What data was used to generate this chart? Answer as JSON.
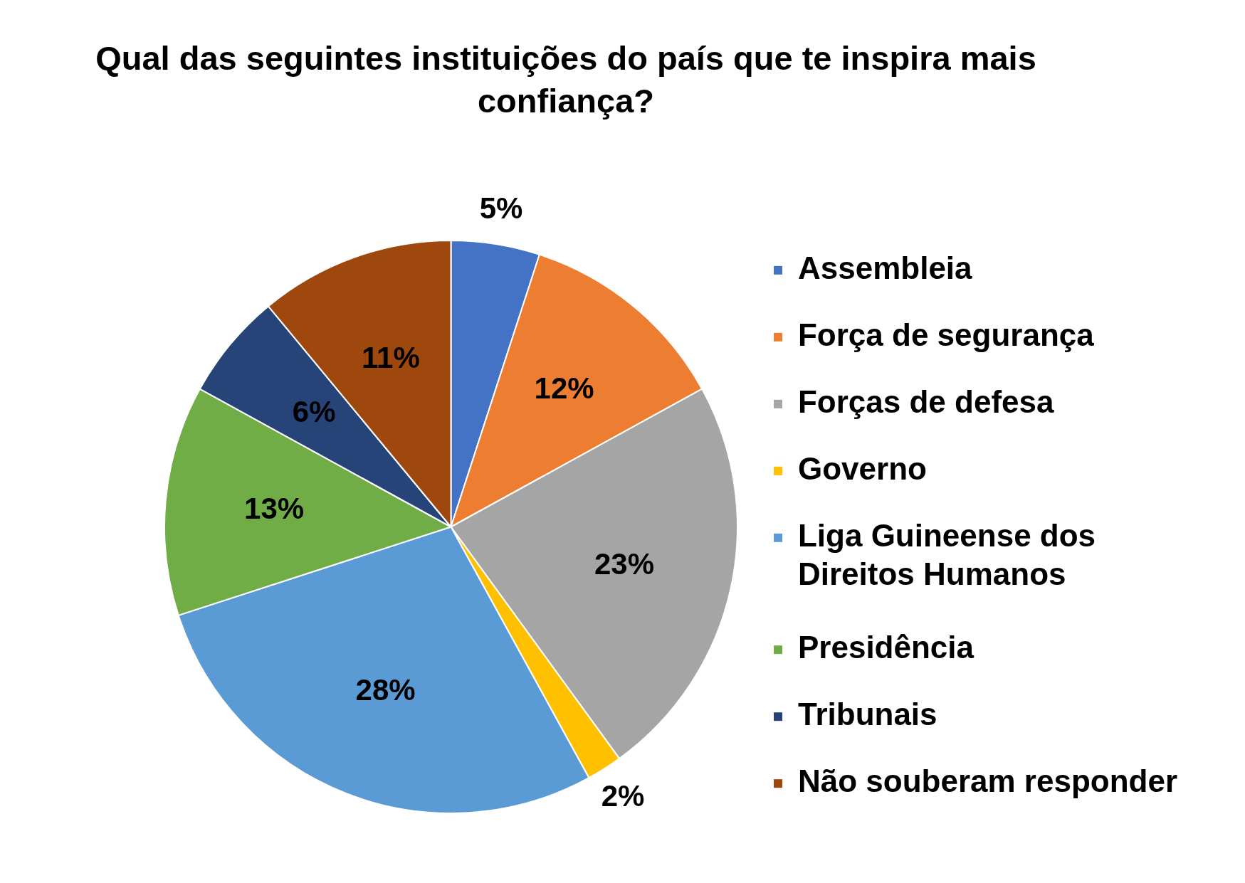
{
  "chart_data": {
    "type": "pie",
    "title": "Qual das seguintes instituições do país que te inspira mais confiança?",
    "categories": [
      "Assembleia",
      "Força de segurança",
      "Forças de defesa",
      "Governo",
      "Liga Guineense dos Direitos Humanos",
      "Presidência",
      "Tribunais",
      "Não souberam responder"
    ],
    "values": [
      5,
      12,
      23,
      2,
      28,
      13,
      6,
      11
    ],
    "colors": [
      "#4472c4",
      "#ed7d31",
      "#a5a5a5",
      "#ffc000",
      "#5b9bd5",
      "#70ad47",
      "#264478",
      "#9e480e"
    ],
    "value_labels": [
      "5%",
      "12%",
      "23%",
      "2%",
      "28%",
      "13%",
      "6%",
      "11%"
    ],
    "legend": "right"
  }
}
